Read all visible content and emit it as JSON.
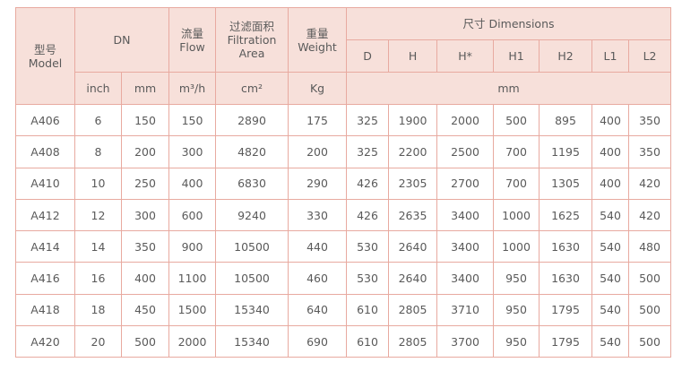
{
  "header": {
    "model": {
      "zh": "型号",
      "en": "Model"
    },
    "dn": "DN",
    "flow": {
      "zh": "流量",
      "en": "Flow"
    },
    "area": {
      "zh": "过滤面积",
      "en": "Filtration Area"
    },
    "weight": {
      "zh": "重量",
      "en": "Weight"
    },
    "dimensions": {
      "zh": "尺寸",
      "en": "Dimensions"
    },
    "dims": [
      "D",
      "H",
      "H*",
      "H1",
      "H2",
      "L1",
      "L2"
    ],
    "units": [
      "inch",
      "mm",
      "m³/h",
      "cm²",
      "Kg",
      "mm"
    ]
  },
  "table": {
    "rows": [
      [
        "A406",
        6,
        150,
        150,
        2890,
        175,
        325,
        1900,
        2000,
        500,
        895,
        400,
        350
      ],
      [
        "A408",
        8,
        200,
        300,
        4820,
        200,
        325,
        2200,
        2500,
        700,
        1195,
        400,
        350
      ],
      [
        "A410",
        10,
        250,
        400,
        6830,
        290,
        426,
        2305,
        2700,
        700,
        1305,
        400,
        420
      ],
      [
        "A412",
        12,
        300,
        600,
        9240,
        330,
        426,
        2635,
        3400,
        1000,
        1625,
        540,
        420
      ],
      [
        "A414",
        14,
        350,
        900,
        10500,
        440,
        530,
        2640,
        3400,
        1000,
        1630,
        540,
        480
      ],
      [
        "A416",
        16,
        400,
        1100,
        10500,
        460,
        530,
        2640,
        3400,
        950,
        1630,
        540,
        500
      ],
      [
        "A418",
        18,
        450,
        1500,
        15340,
        640,
        610,
        2805,
        3710,
        950,
        1795,
        540,
        500
      ],
      [
        "A420",
        20,
        500,
        2000,
        15340,
        690,
        610,
        2805,
        3700,
        950,
        1795,
        540,
        500
      ]
    ]
  }
}
